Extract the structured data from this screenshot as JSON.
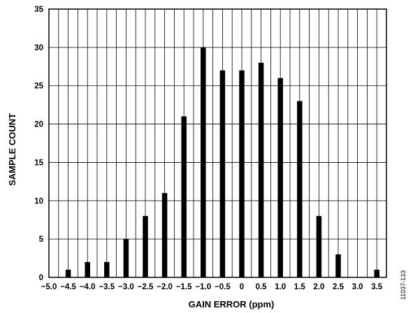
{
  "chart_data": {
    "type": "bar",
    "title": "",
    "xlabel": "GAIN ERROR (ppm)",
    "ylabel": "SAMPLE COUNT",
    "ylim": [
      0,
      35
    ],
    "yticks": [
      "0",
      "5",
      "10",
      "15",
      "20",
      "25",
      "30",
      "35"
    ],
    "xlim": [
      -5.0,
      3.75
    ],
    "xtick_values": [
      -5.0,
      -4.5,
      -4.0,
      -3.5,
      -3.0,
      -2.5,
      -2.0,
      -1.5,
      -1.0,
      -0.5,
      0,
      0.5,
      1.0,
      1.5,
      2.0,
      2.5,
      3.0,
      3.5
    ],
    "xticks": [
      "−5.0",
      "−4.5",
      "−4.0",
      "−3.5",
      "−3.0",
      "−2.5",
      "−2.0",
      "−1.5",
      "−1.0",
      "−0.5",
      "0",
      "0.5",
      "1.0",
      "1.5",
      "2.0",
      "2.5",
      "3.0",
      "3.5"
    ],
    "bins": [
      -4.5,
      -4.0,
      -3.5,
      -3.0,
      -2.5,
      -2.0,
      -1.5,
      -1.0,
      -0.5,
      0,
      0.5,
      1.0,
      1.5,
      2.0,
      2.5,
      3.0,
      3.5
    ],
    "values": [
      1,
      2,
      2,
      5,
      8,
      11,
      21,
      30,
      27,
      27,
      28,
      26,
      23,
      8,
      3,
      0,
      1
    ],
    "grid": true,
    "bar_color": "#000000",
    "grid_color": "#000000"
  },
  "figure_id": "11037-133"
}
